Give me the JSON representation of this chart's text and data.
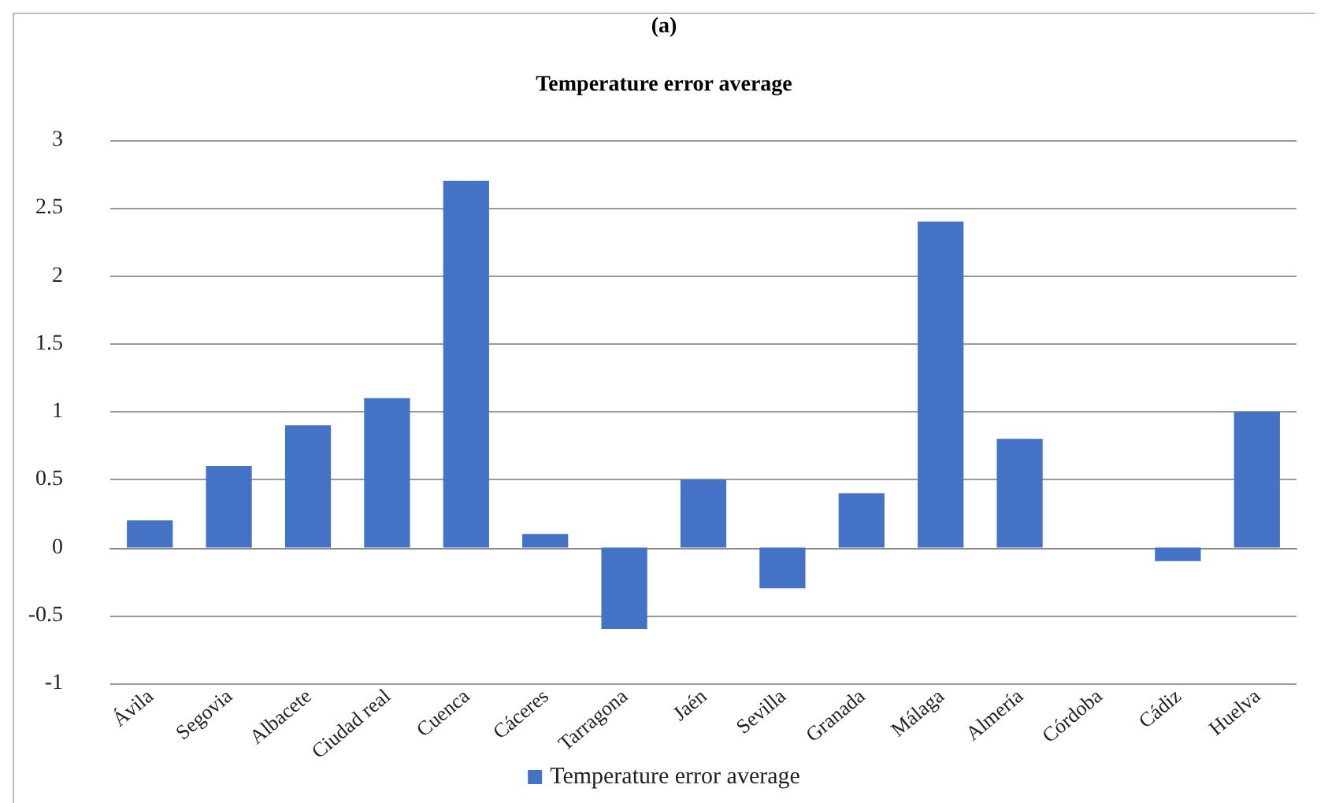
{
  "chart_data": {
    "type": "bar",
    "title": "Temperature error average",
    "annotations": [
      "(a)"
    ],
    "categories": [
      "Ávila",
      "Segovia",
      "Albacete",
      "Ciudad real",
      "Cuenca",
      "Cáceres",
      "Tarragona",
      "Jaén",
      "Sevilla",
      "Granada",
      "Málaga",
      "Almería",
      "Córdoba",
      "Cádiz",
      "Huelva"
    ],
    "series": [
      {
        "name": "Temperature error average",
        "color": "#4472c4",
        "values": [
          0.2,
          0.6,
          0.9,
          1.1,
          2.7,
          0.1,
          -0.6,
          0.5,
          -0.3,
          0.4,
          2.4,
          0.8,
          0,
          -0.1,
          1.0
        ]
      }
    ],
    "ylim": [
      -1,
      3
    ],
    "yticks": [
      -1,
      -0.5,
      0,
      0.5,
      1,
      1.5,
      2,
      2.5,
      3
    ],
    "grid": "y",
    "legend": "bottom"
  }
}
